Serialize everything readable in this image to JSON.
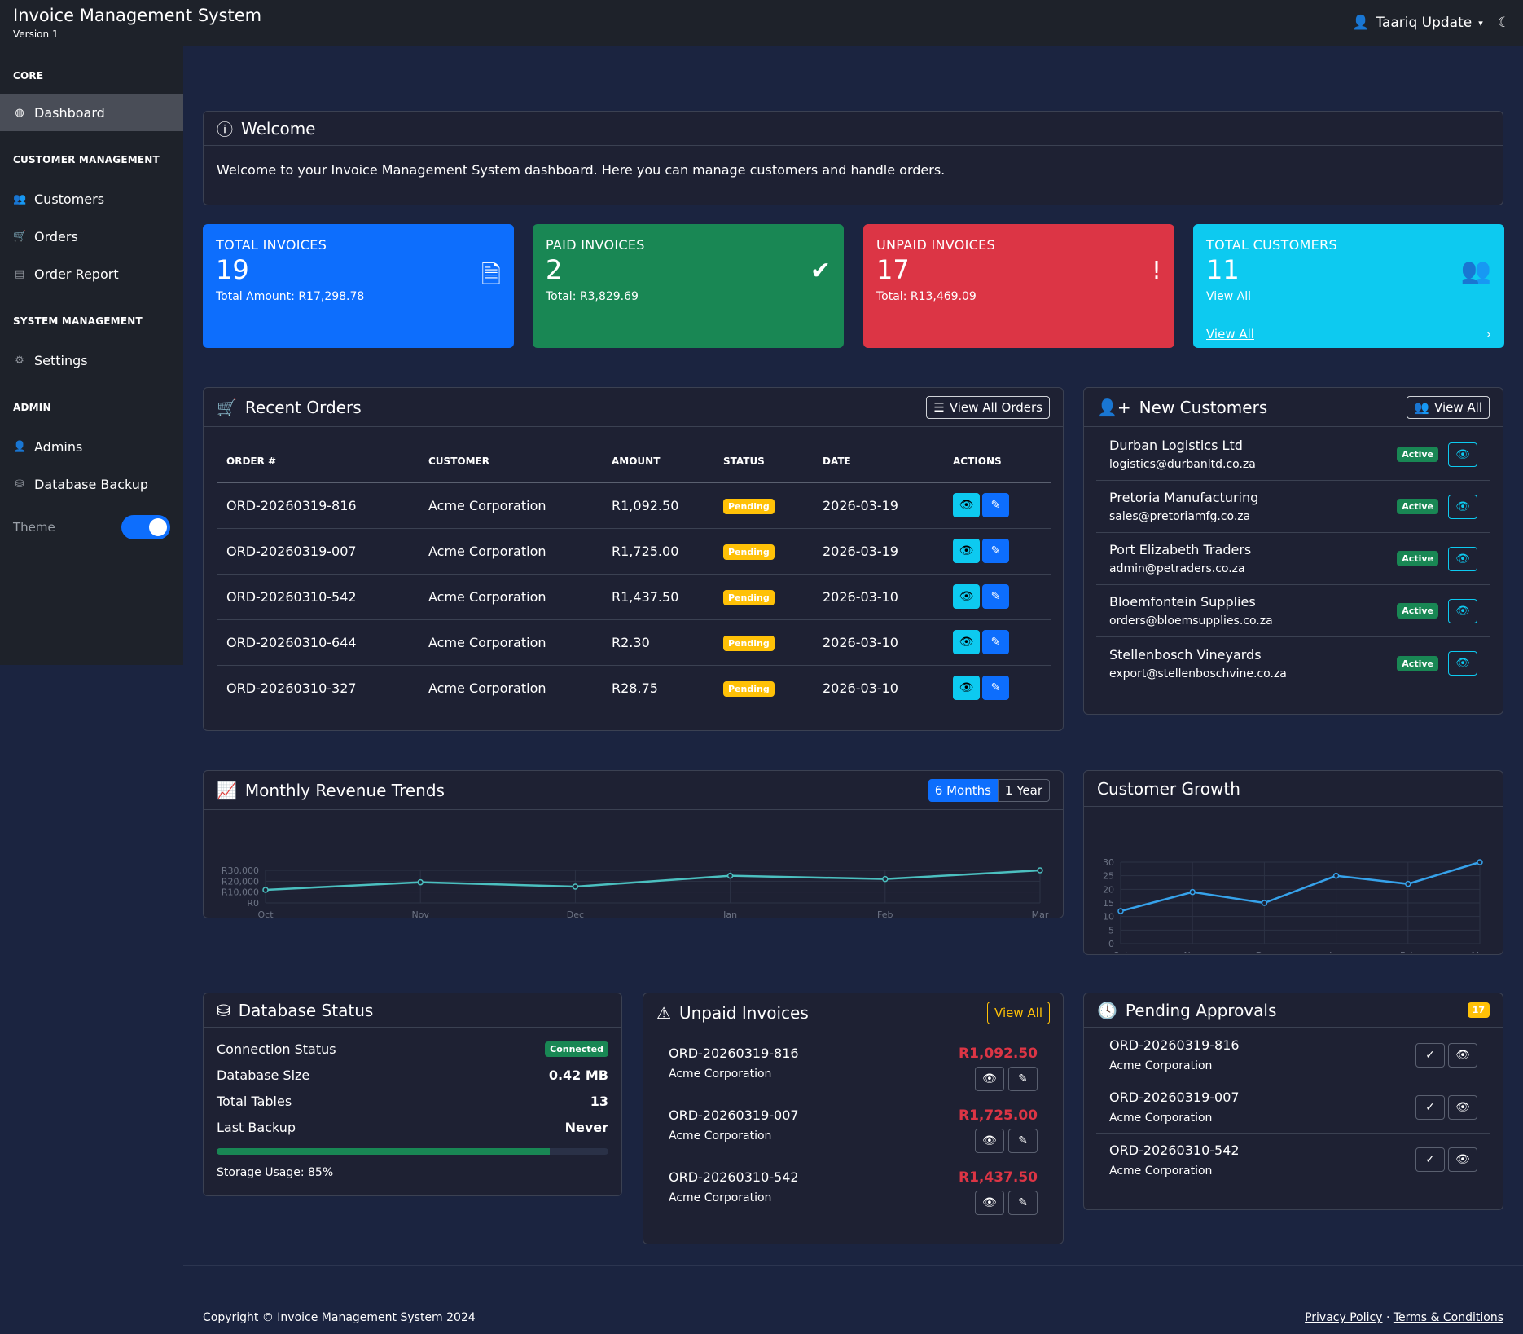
{
  "app": {
    "title": "Invoice Management System",
    "version": "Version 1",
    "user": "Taariq Update"
  },
  "sidebar": {
    "sections": [
      {
        "label": "CORE"
      },
      {
        "label": "CUSTOMER MANAGEMENT"
      },
      {
        "label": "SYSTEM MANAGEMENT"
      },
      {
        "label": "ADMIN"
      }
    ],
    "items": {
      "dashboard": "Dashboard",
      "customers": "Customers",
      "orders": "Orders",
      "order_report": "Order Report",
      "settings": "Settings",
      "admins": "Admins",
      "db_backup": "Database Backup"
    },
    "theme_label": "Theme"
  },
  "welcome": {
    "title": "Welcome",
    "text": "Welcome to your Invoice Management System dashboard. Here you can manage customers and handle orders."
  },
  "stats": [
    {
      "label": "TOTAL INVOICES",
      "value": "19",
      "sub": "Total Amount: R17,298.78",
      "color": "#0d6efd"
    },
    {
      "label": "PAID INVOICES",
      "value": "2",
      "sub": "Total: R3,829.69",
      "color": "#198754"
    },
    {
      "label": "UNPAID INVOICES",
      "value": "17",
      "sub": "Total: R13,469.09",
      "color": "#dc3545"
    },
    {
      "label": "TOTAL CUSTOMERS",
      "value": "11",
      "sub": "View All",
      "link": "View All",
      "color": "#0dcaf0"
    }
  ],
  "recent_orders": {
    "title": "Recent Orders",
    "view_all": "View All Orders",
    "columns": [
      "ORDER #",
      "CUSTOMER",
      "AMOUNT",
      "STATUS",
      "DATE",
      "ACTIONS"
    ],
    "rows": [
      {
        "order": "ORD-20260319-816",
        "customer": "Acme Corporation",
        "amount": "R1,092.50",
        "status": "Pending",
        "date": "2026-03-19"
      },
      {
        "order": "ORD-20260319-007",
        "customer": "Acme Corporation",
        "amount": "R1,725.00",
        "status": "Pending",
        "date": "2026-03-19"
      },
      {
        "order": "ORD-20260310-542",
        "customer": "Acme Corporation",
        "amount": "R1,437.50",
        "status": "Pending",
        "date": "2026-03-10"
      },
      {
        "order": "ORD-20260310-644",
        "customer": "Acme Corporation",
        "amount": "R2.30",
        "status": "Pending",
        "date": "2026-03-10"
      },
      {
        "order": "ORD-20260310-327",
        "customer": "Acme Corporation",
        "amount": "R28.75",
        "status": "Pending",
        "date": "2026-03-10"
      }
    ]
  },
  "new_customers": {
    "title": "New Customers",
    "view_all": "View All",
    "items": [
      {
        "name": "Durban Logistics Ltd",
        "email": "logistics@durbanltd.co.za",
        "status": "Active"
      },
      {
        "name": "Pretoria Manufacturing",
        "email": "sales@pretoriamfg.co.za",
        "status": "Active"
      },
      {
        "name": "Port Elizabeth Traders",
        "email": "admin@petraders.co.za",
        "status": "Active"
      },
      {
        "name": "Bloemfontein Supplies",
        "email": "orders@bloemsupplies.co.za",
        "status": "Active"
      },
      {
        "name": "Stellenbosch Vineyards",
        "email": "export@stellenboschvine.co.za",
        "status": "Active"
      }
    ]
  },
  "revenue": {
    "title": "Monthly Revenue Trends",
    "btn_6m": "6 Months",
    "btn_1y": "1 Year"
  },
  "growth": {
    "title": "Customer Growth"
  },
  "chart_data": [
    {
      "type": "line",
      "categories": [
        "Oct",
        "Nov",
        "Dec",
        "Jan",
        "Feb",
        "Mar"
      ],
      "values": [
        12000,
        19000,
        15000,
        25000,
        22000,
        30000
      ],
      "ylim": [
        0,
        30000
      ],
      "yticks": [
        "R0",
        "R10,000",
        "R20,000",
        "R30,000"
      ],
      "color": "#4bc0c0"
    },
    {
      "type": "line",
      "categories": [
        "Oct",
        "Nov",
        "Dec",
        "Jan",
        "Feb",
        "Mar"
      ],
      "values": [
        12,
        19,
        15,
        25,
        22,
        30
      ],
      "ylim": [
        0,
        30
      ],
      "yticks": [
        "0",
        "5",
        "10",
        "15",
        "20",
        "25",
        "30"
      ],
      "color": "#36a2eb"
    }
  ],
  "db_status": {
    "title": "Database Status",
    "rows": [
      {
        "label": "Connection Status",
        "value": "Connected"
      },
      {
        "label": "Database Size",
        "value": "0.42 MB"
      },
      {
        "label": "Total Tables",
        "value": "13"
      },
      {
        "label": "Last Backup",
        "value": "Never"
      }
    ],
    "storage_label": "Storage Usage: 85%",
    "storage_pct": 85
  },
  "unpaid": {
    "title": "Unpaid Invoices",
    "view_all": "View All",
    "items": [
      {
        "order": "ORD-20260319-816",
        "customer": "Acme Corporation",
        "amount": "R1,092.50"
      },
      {
        "order": "ORD-20260319-007",
        "customer": "Acme Corporation",
        "amount": "R1,725.00"
      },
      {
        "order": "ORD-20260310-542",
        "customer": "Acme Corporation",
        "amount": "R1,437.50"
      }
    ]
  },
  "pending": {
    "title": "Pending Approvals",
    "count": "17",
    "items": [
      {
        "order": "ORD-20260319-816",
        "customer": "Acme Corporation"
      },
      {
        "order": "ORD-20260319-007",
        "customer": "Acme Corporation"
      },
      {
        "order": "ORD-20260310-542",
        "customer": "Acme Corporation"
      }
    ]
  },
  "footer": {
    "copyright": "Copyright © Invoice Management System 2024",
    "privacy": "Privacy Policy",
    "sep": "·",
    "terms": "Terms & Conditions"
  }
}
